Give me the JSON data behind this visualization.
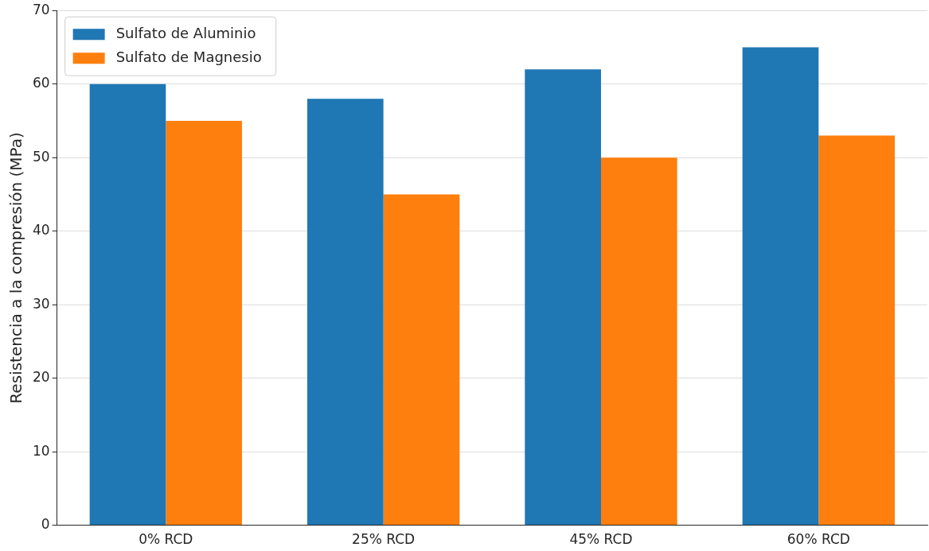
{
  "chart_data": {
    "type": "bar",
    "ylabel": "Resistencia a la compresión (MPa)",
    "categories": [
      "0% RCD",
      "25% RCD",
      "45% RCD",
      "60% RCD"
    ],
    "series": [
      {
        "name": "Sulfato de Aluminio",
        "color": "#1f77b4",
        "values": [
          60,
          58,
          62,
          65
        ]
      },
      {
        "name": "Sulfato de Magnesio",
        "color": "#ff7f0e",
        "values": [
          55,
          45,
          50,
          53
        ]
      }
    ],
    "ylim": [
      0,
      70
    ],
    "yticks": [
      0,
      10,
      20,
      30,
      40,
      50,
      60,
      70
    ],
    "grid": "y",
    "legend": "top left"
  }
}
